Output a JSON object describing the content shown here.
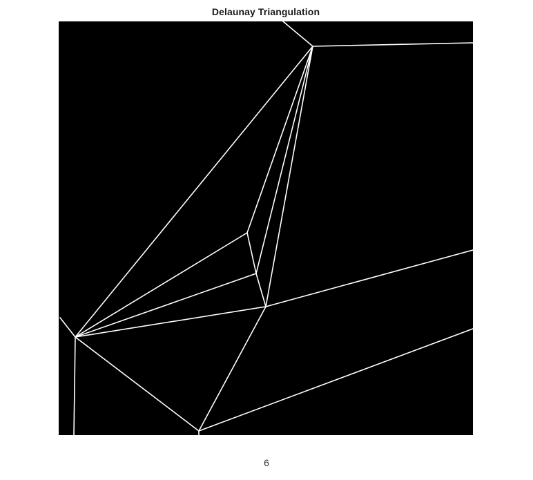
{
  "figure": {
    "title": "Delaunay Triangulation",
    "caption": "6",
    "background_color": "#000000",
    "edge_color": "#ffffff"
  },
  "chart_data": {
    "type": "diagram",
    "edges": [
      {
        "id": "edge-top-stub",
        "from": [
          325,
          0
        ],
        "to": [
          368,
          36
        ]
      },
      {
        "id": "edge-top-right",
        "from": [
          368,
          36
        ],
        "to": [
          600,
          31
        ]
      },
      {
        "id": "edge-long-diagonal",
        "from": [
          368,
          36
        ],
        "to": [
          24,
          457
        ]
      },
      {
        "id": "edge-fan-1",
        "from": [
          368,
          36
        ],
        "to": [
          273,
          306
        ]
      },
      {
        "id": "edge-fan-2",
        "from": [
          368,
          36
        ],
        "to": [
          286,
          365
        ]
      },
      {
        "id": "edge-fan-3",
        "from": [
          368,
          36
        ],
        "to": [
          300,
          413
        ]
      },
      {
        "id": "edge-short-1",
        "from": [
          273,
          306
        ],
        "to": [
          286,
          365
        ]
      },
      {
        "id": "edge-short-2",
        "from": [
          286,
          365
        ],
        "to": [
          300,
          413
        ]
      },
      {
        "id": "edge-left-1",
        "from": [
          24,
          457
        ],
        "to": [
          273,
          306
        ]
      },
      {
        "id": "edge-left-2",
        "from": [
          24,
          457
        ],
        "to": [
          286,
          365
        ]
      },
      {
        "id": "edge-left-3",
        "from": [
          24,
          457
        ],
        "to": [
          300,
          413
        ]
      },
      {
        "id": "edge-right-mid",
        "from": [
          300,
          413
        ],
        "to": [
          600,
          331
        ]
      },
      {
        "id": "edge-down-center",
        "from": [
          300,
          413
        ],
        "to": [
          203,
          593
        ]
      },
      {
        "id": "edge-left-down",
        "from": [
          24,
          457
        ],
        "to": [
          203,
          593
        ]
      },
      {
        "id": "edge-left-vertical",
        "from": [
          24,
          457
        ],
        "to": [
          22,
          599
        ]
      },
      {
        "id": "edge-left-stub",
        "from": [
          24,
          457
        ],
        "to": [
          2,
          429
        ]
      },
      {
        "id": "edge-bottom-right",
        "from": [
          203,
          593
        ],
        "to": [
          600,
          445
        ]
      },
      {
        "id": "edge-bottom-stub",
        "from": [
          203,
          593
        ],
        "to": [
          203,
          599
        ]
      }
    ]
  }
}
